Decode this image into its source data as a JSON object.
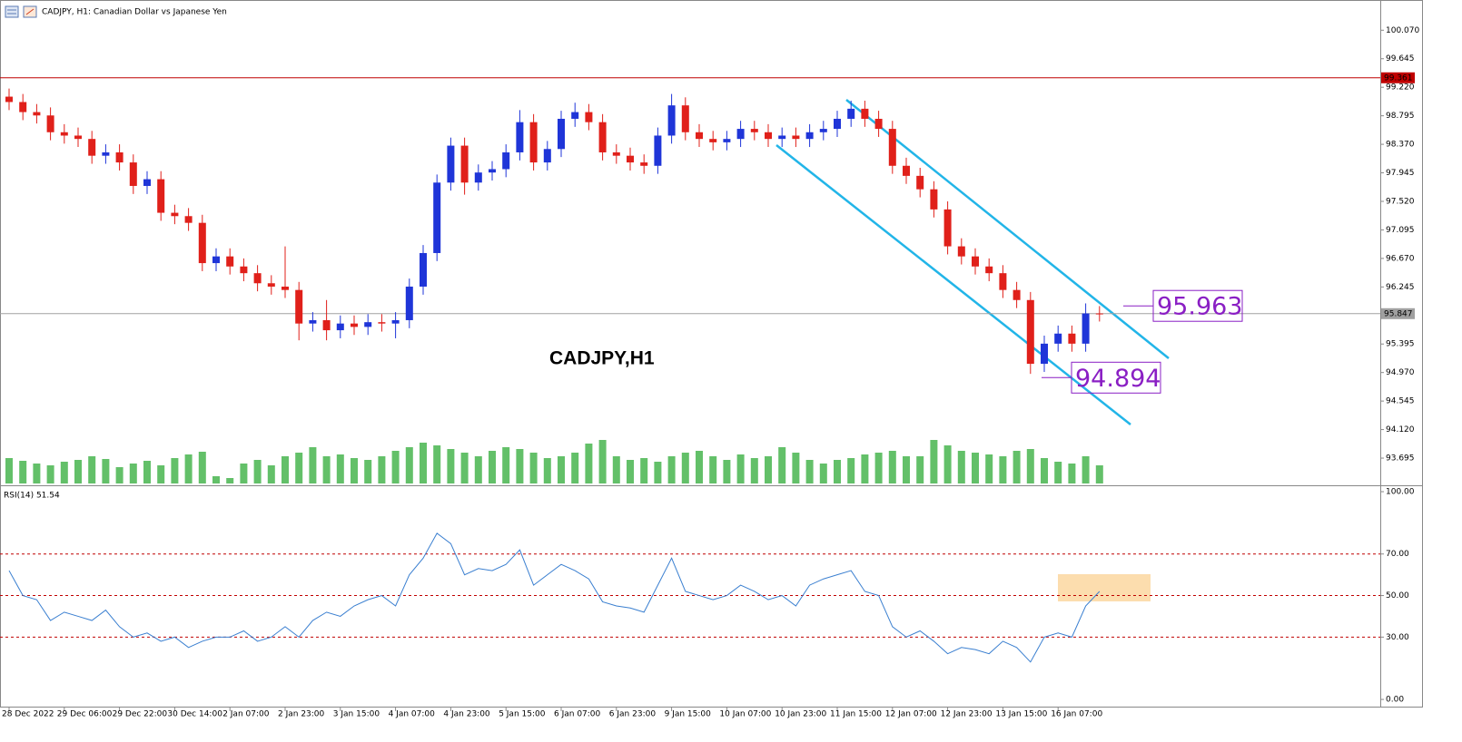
{
  "chart_data": {
    "type": "candlestick",
    "title": "CADJPY, H1:  Canadian Dollar vs Japanese Yen",
    "watermark": "CADJPY,H1",
    "up_color": "#1f35d8",
    "down_color": "#e0201a",
    "volume_color": "#3cb043",
    "categories": [
      "28 Dec 2022",
      null,
      null,
      null,
      "29 Dec 06:00",
      null,
      null,
      null,
      "29 Dec 22:00",
      null,
      null,
      null,
      "30 Dec 14:00",
      null,
      null,
      null,
      "2 Jan 07:00",
      null,
      null,
      null,
      "2 Jan 23:00",
      null,
      null,
      null,
      "3 Jan 15:00",
      null,
      null,
      null,
      "4 Jan 07:00",
      null,
      null,
      null,
      "4 Jan 23:00",
      null,
      null,
      null,
      "5 Jan 15:00",
      null,
      null,
      null,
      "6 Jan 07:00",
      null,
      null,
      null,
      "6 Jan 23:00",
      null,
      null,
      null,
      "9 Jan 15:00",
      null,
      null,
      null,
      "10 Jan 07:00",
      null,
      null,
      null,
      "10 Jan 23:00",
      null,
      null,
      null,
      "11 Jan 15:00",
      null,
      null,
      null,
      "12 Jan 07:00",
      null,
      null,
      null,
      "12 Jan 23:00",
      null,
      null,
      null,
      "13 Jan 15:00",
      null,
      null,
      null,
      "16 Jan 07:00",
      null,
      null,
      null
    ],
    "open": [
      99.08,
      99.0,
      98.85,
      98.8,
      98.55,
      98.5,
      98.45,
      98.2,
      98.25,
      98.1,
      97.75,
      97.85,
      97.35,
      97.3,
      97.2,
      96.6,
      96.7,
      96.55,
      96.45,
      96.3,
      96.25,
      96.2,
      95.7,
      95.75,
      95.6,
      95.7,
      95.65,
      95.72,
      95.7,
      95.75,
      96.25,
      96.75,
      97.8,
      98.35,
      97.8,
      97.95,
      98.0,
      98.25,
      98.7,
      98.1,
      98.3,
      98.75,
      98.85,
      98.7,
      98.25,
      98.2,
      98.1,
      98.05,
      98.5,
      98.95,
      98.55,
      98.45,
      98.4,
      98.45,
      98.6,
      98.55,
      98.45,
      98.5,
      98.45,
      98.55,
      98.6,
      98.75,
      98.9,
      98.75,
      98.6,
      98.05,
      97.9,
      97.7,
      97.4,
      96.85,
      96.7,
      96.55,
      96.45,
      96.2,
      96.05,
      95.1,
      95.4,
      95.55,
      95.4,
      95.85
    ],
    "high": [
      99.2,
      99.12,
      98.97,
      98.92,
      98.67,
      98.62,
      98.57,
      98.37,
      98.37,
      98.22,
      97.97,
      97.97,
      97.47,
      97.42,
      97.32,
      96.82,
      96.82,
      96.67,
      96.57,
      96.42,
      96.85,
      96.32,
      95.87,
      96.05,
      95.82,
      95.82,
      95.84,
      95.84,
      95.87,
      96.37,
      96.87,
      97.92,
      98.47,
      98.47,
      98.07,
      98.12,
      98.37,
      98.88,
      98.82,
      98.42,
      98.87,
      98.99,
      98.97,
      98.82,
      98.37,
      98.32,
      98.22,
      98.62,
      99.12,
      99.07,
      98.67,
      98.57,
      98.57,
      98.72,
      98.72,
      98.67,
      98.62,
      98.62,
      98.67,
      98.72,
      98.87,
      99.02,
      99.02,
      98.87,
      98.72,
      98.17,
      98.02,
      97.82,
      97.52,
      96.97,
      96.82,
      96.67,
      96.57,
      96.32,
      96.17,
      95.52,
      95.67,
      95.67,
      96.0,
      95.96
    ],
    "low": [
      98.88,
      98.73,
      98.68,
      98.43,
      98.38,
      98.33,
      98.08,
      98.08,
      97.98,
      97.63,
      97.63,
      97.23,
      97.18,
      97.08,
      96.48,
      96.48,
      96.43,
      96.33,
      96.18,
      96.13,
      96.08,
      95.45,
      95.58,
      95.45,
      95.48,
      95.53,
      95.53,
      95.58,
      95.48,
      95.63,
      96.13,
      96.63,
      97.68,
      97.62,
      97.68,
      97.83,
      97.88,
      98.13,
      97.98,
      97.98,
      98.18,
      98.63,
      98.58,
      98.13,
      98.08,
      97.98,
      97.93,
      97.93,
      98.38,
      98.43,
      98.33,
      98.28,
      98.28,
      98.33,
      98.43,
      98.33,
      98.33,
      98.33,
      98.33,
      98.43,
      98.48,
      98.63,
      98.63,
      98.48,
      97.93,
      97.78,
      97.58,
      97.28,
      96.73,
      96.58,
      96.43,
      96.33,
      96.08,
      95.93,
      94.95,
      94.98,
      95.28,
      95.28,
      95.28,
      95.73
    ],
    "close": [
      99.0,
      98.85,
      98.8,
      98.55,
      98.5,
      98.45,
      98.2,
      98.25,
      98.1,
      97.75,
      97.85,
      97.35,
      97.3,
      97.2,
      96.6,
      96.7,
      96.55,
      96.45,
      96.3,
      96.25,
      96.2,
      95.7,
      95.75,
      95.6,
      95.7,
      95.65,
      95.72,
      95.7,
      95.75,
      96.25,
      96.75,
      97.8,
      98.35,
      97.8,
      97.95,
      98.0,
      98.25,
      98.7,
      98.1,
      98.3,
      98.75,
      98.85,
      98.7,
      98.25,
      98.2,
      98.1,
      98.05,
      98.5,
      98.95,
      98.55,
      98.45,
      98.4,
      98.45,
      98.6,
      98.55,
      98.45,
      98.5,
      98.45,
      98.55,
      98.6,
      98.75,
      98.9,
      98.75,
      98.6,
      98.05,
      97.9,
      97.7,
      97.4,
      96.85,
      96.7,
      96.55,
      96.45,
      96.2,
      96.05,
      95.1,
      95.4,
      95.55,
      95.4,
      95.85,
      95.847
    ],
    "volume": [
      28,
      25,
      22,
      20,
      24,
      26,
      30,
      27,
      18,
      22,
      25,
      20,
      28,
      32,
      35,
      8,
      6,
      22,
      26,
      20,
      30,
      34,
      40,
      30,
      32,
      28,
      26,
      30,
      36,
      40,
      45,
      42,
      38,
      34,
      30,
      36,
      40,
      38,
      34,
      28,
      30,
      34,
      44,
      48,
      30,
      26,
      28,
      24,
      30,
      34,
      36,
      30,
      26,
      32,
      28,
      30,
      40,
      34,
      26,
      22,
      26,
      28,
      32,
      34,
      36,
      30,
      30,
      48,
      42,
      36,
      34,
      32,
      30,
      36,
      38,
      28,
      24,
      22,
      30,
      20
    ],
    "ylim": [
      93.29,
      100.52
    ],
    "yticks": [
      {
        "value": 100.07,
        "label": "100.070"
      },
      {
        "value": 99.645,
        "label": "99.645"
      },
      {
        "value": 99.22,
        "label": "99.220"
      },
      {
        "value": 98.795,
        "label": "98.795"
      },
      {
        "value": 98.37,
        "label": "98.370"
      },
      {
        "value": 97.945,
        "label": "97.945"
      },
      {
        "value": 97.52,
        "label": "97.520"
      },
      {
        "value": 97.095,
        "label": "97.095"
      },
      {
        "value": 96.67,
        "label": "96.670"
      },
      {
        "value": 96.245,
        "label": "96.245"
      },
      {
        "value": 95.395,
        "label": "95.395"
      },
      {
        "value": 94.97,
        "label": "94.970"
      },
      {
        "value": 94.545,
        "label": "94.545"
      },
      {
        "value": 94.12,
        "label": "94.120"
      },
      {
        "value": 93.695,
        "label": "93.695"
      }
    ],
    "hline": {
      "value": 99.361,
      "color": "#c00000"
    },
    "current_price": 95.847,
    "annotations": [
      {
        "value": 95.963
      },
      {
        "value": 94.894
      }
    ],
    "rsi": {
      "title": "RSI(14) 51.54",
      "color": "#3a7fd0",
      "values": [
        62,
        50,
        48,
        38,
        42,
        40,
        38,
        43,
        35,
        30,
        32,
        28,
        30,
        25,
        28,
        30,
        30,
        33,
        28,
        30,
        35,
        30,
        38,
        42,
        40,
        45,
        48,
        50,
        45,
        60,
        68,
        80,
        75,
        60,
        63,
        62,
        65,
        72,
        55,
        60,
        65,
        62,
        58,
        47,
        45,
        44,
        42,
        55,
        68,
        52,
        50,
        48,
        50,
        55,
        52,
        48,
        50,
        45,
        55,
        58,
        60,
        62,
        52,
        50,
        35,
        30,
        33,
        28,
        22,
        25,
        24,
        22,
        28,
        25,
        18,
        30,
        32,
        30,
        45,
        52
      ],
      "ylim": [
        -3.9,
        102.2
      ],
      "yticks": [
        {
          "value": 100,
          "label": "100.00"
        },
        {
          "value": 70,
          "label": "70.00"
        },
        {
          "value": 50,
          "label": "50.00"
        },
        {
          "value": 30,
          "label": "30.00"
        },
        {
          "value": 0,
          "label": "0.00"
        }
      ],
      "levels": [
        70,
        50,
        30
      ]
    }
  }
}
